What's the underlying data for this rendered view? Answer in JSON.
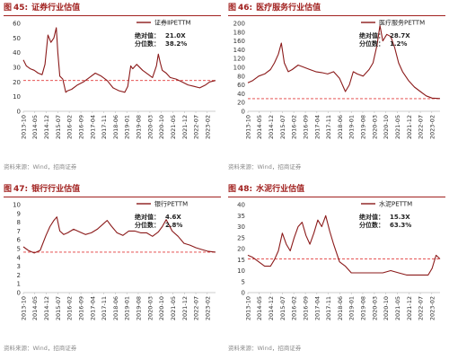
{
  "panels": [
    {
      "figure_label": "图",
      "figure_num": "45:",
      "title": "证券行业估值",
      "source": "资料来源：Wind，招商证券",
      "annotation": {
        "abs_label": "绝对值：",
        "abs_value": "21.0X",
        "pct_label": "分位数：",
        "pct_value": "38.2%"
      }
    },
    {
      "figure_label": "图",
      "figure_num": "46:",
      "title": "医疗服务行业估值",
      "source": "资料来源：Wind，招商证券",
      "annotation": {
        "abs_label": "绝对值：",
        "abs_value": "28.7X",
        "pct_label": "分位数：",
        "pct_value": "1.2%"
      }
    },
    {
      "figure_label": "图",
      "figure_num": "47:",
      "title": "银行行业估值",
      "source": "资料来源：Wind，招商证券",
      "annotation": {
        "abs_label": "绝对值：",
        "abs_value": "4.6X",
        "pct_label": "分位数：",
        "pct_value": "2.8%"
      }
    },
    {
      "figure_label": "图",
      "figure_num": "48:",
      "title": "水泥行业估值",
      "source": "资料来源：Wind，招商证券",
      "annotation": {
        "abs_label": "绝对值：",
        "abs_value": "15.3X",
        "pct_label": "分位数：",
        "pct_value": "63.3%"
      }
    }
  ],
  "colors": {
    "title": "#a1211f",
    "line": "#8b1a1a",
    "reference": "#e23b3b",
    "source": "#8a8a8a",
    "axis": "#bdbdbd"
  },
  "chart_data": [
    {
      "type": "line",
      "legend": "证券ⅡPETTM",
      "legend_position": "top-right",
      "x_ticks": [
        "2013-10",
        "2014-05",
        "2014-12",
        "2015-07",
        "2016-02",
        "2016-09",
        "2017-04",
        "2017-11",
        "2018-06",
        "2019-01",
        "2019-08",
        "2020-03",
        "2020-10",
        "2021-05",
        "2021-12",
        "2022-07",
        "2023-02"
      ],
      "x_tick_pos": [
        2013.75,
        2014.33,
        2014.92,
        2015.5,
        2016.08,
        2016.67,
        2017.25,
        2017.83,
        2018.42,
        2019.0,
        2019.58,
        2020.17,
        2020.75,
        2021.33,
        2021.92,
        2022.5,
        2023.08
      ],
      "xlim": [
        2013.75,
        2023.5
      ],
      "ylim": [
        0,
        60
      ],
      "y_ticks": [
        0,
        10,
        20,
        30,
        40,
        50,
        60
      ],
      "reference": 21.0,
      "series": [
        {
          "x": [
            2013.75,
            2013.9,
            2014.1,
            2014.3,
            2014.5,
            2014.7,
            2014.85,
            2015.0,
            2015.15,
            2015.3,
            2015.42,
            2015.5,
            2015.6,
            2015.75,
            2015.9,
            2016.0,
            2016.2,
            2016.5,
            2016.8,
            2017.1,
            2017.4,
            2017.7,
            2018.0,
            2018.3,
            2018.6,
            2018.9,
            2019.05,
            2019.2,
            2019.3,
            2019.5,
            2019.8,
            2020.1,
            2020.3,
            2020.5,
            2020.6,
            2020.7,
            2020.8,
            2021.0,
            2021.2,
            2021.5,
            2021.8,
            2022.1,
            2022.4,
            2022.7,
            2023.0,
            2023.2,
            2023.5
          ],
          "y": [
            35,
            31,
            29,
            28,
            26,
            25,
            32,
            52,
            47,
            50,
            57,
            40,
            24,
            22,
            13,
            14,
            15,
            18,
            20,
            23,
            26,
            24,
            21,
            16,
            14,
            13,
            17,
            31,
            29,
            32,
            28,
            25,
            23,
            31,
            39,
            33,
            28,
            26,
            23,
            22,
            20,
            18,
            17,
            16,
            18,
            20,
            21
          ]
        }
      ]
    },
    {
      "type": "line",
      "legend": "医疗服务PETTM",
      "legend_position": "top-right",
      "x_ticks": [
        "2013-10",
        "2014-05",
        "2014-12",
        "2015-07",
        "2016-02",
        "2016-09",
        "2017-04",
        "2017-11",
        "2018-06",
        "2019-01",
        "2019-08",
        "2020-03",
        "2020-10",
        "2021-05",
        "2021-12",
        "2022-07",
        "2023-02"
      ],
      "x_tick_pos": [
        2013.75,
        2014.33,
        2014.92,
        2015.5,
        2016.08,
        2016.67,
        2017.25,
        2017.83,
        2018.42,
        2019.0,
        2019.58,
        2020.17,
        2020.75,
        2021.33,
        2021.92,
        2022.5,
        2023.08
      ],
      "xlim": [
        2013.75,
        2023.5
      ],
      "ylim": [
        0,
        200
      ],
      "y_ticks": [
        0,
        20,
        40,
        60,
        80,
        100,
        120,
        140,
        160,
        180,
        200
      ],
      "reference": 28.7,
      "series": [
        {
          "x": [
            2013.75,
            2014.0,
            2014.3,
            2014.6,
            2014.9,
            2015.1,
            2015.3,
            2015.45,
            2015.6,
            2015.8,
            2016.0,
            2016.3,
            2016.6,
            2016.9,
            2017.2,
            2017.5,
            2017.8,
            2018.1,
            2018.4,
            2018.7,
            2018.9,
            2019.1,
            2019.3,
            2019.6,
            2019.9,
            2020.1,
            2020.3,
            2020.45,
            2020.6,
            2020.8,
            2021.0,
            2021.2,
            2021.4,
            2021.6,
            2021.9,
            2022.2,
            2022.5,
            2022.8,
            2023.1,
            2023.5
          ],
          "y": [
            65,
            70,
            80,
            85,
            95,
            110,
            130,
            155,
            110,
            90,
            95,
            105,
            100,
            95,
            90,
            88,
            85,
            90,
            75,
            45,
            60,
            90,
            85,
            80,
            95,
            110,
            150,
            195,
            160,
            175,
            170,
            145,
            110,
            90,
            70,
            55,
            45,
            35,
            30,
            29
          ]
        }
      ]
    },
    {
      "type": "line",
      "legend": "银行PETTM",
      "legend_position": "top-right",
      "x_ticks": [
        "2013-10",
        "2014-05",
        "2014-12",
        "2015-07",
        "2016-02",
        "2016-09",
        "2017-04",
        "2017-11",
        "2018-06",
        "2019-01",
        "2019-08",
        "2020-03",
        "2020-10",
        "2021-05",
        "2021-12",
        "2022-07",
        "2023-02"
      ],
      "x_tick_pos": [
        2013.75,
        2014.33,
        2014.92,
        2015.5,
        2016.08,
        2016.67,
        2017.25,
        2017.83,
        2018.42,
        2019.0,
        2019.58,
        2020.17,
        2020.75,
        2021.33,
        2021.92,
        2022.5,
        2023.08
      ],
      "xlim": [
        2013.75,
        2023.5
      ],
      "ylim": [
        0,
        10
      ],
      "y_ticks": [
        0,
        1,
        2,
        3,
        4,
        5,
        6,
        7,
        8,
        9,
        10
      ],
      "reference": 4.6,
      "series": [
        {
          "x": [
            2013.75,
            2014.0,
            2014.3,
            2014.6,
            2014.9,
            2015.1,
            2015.3,
            2015.45,
            2015.6,
            2015.8,
            2016.0,
            2016.3,
            2016.6,
            2016.9,
            2017.2,
            2017.5,
            2017.8,
            2018.0,
            2018.2,
            2018.5,
            2018.8,
            2019.1,
            2019.4,
            2019.7,
            2020.0,
            2020.3,
            2020.6,
            2020.8,
            2021.0,
            2021.3,
            2021.6,
            2021.9,
            2022.2,
            2022.5,
            2022.8,
            2023.1,
            2023.5
          ],
          "y": [
            5.2,
            4.8,
            4.5,
            4.8,
            6.5,
            7.5,
            8.2,
            8.6,
            7.0,
            6.6,
            6.8,
            7.2,
            6.9,
            6.6,
            6.8,
            7.2,
            7.8,
            8.2,
            7.6,
            6.8,
            6.5,
            7.0,
            7.0,
            6.8,
            6.8,
            6.4,
            6.9,
            7.5,
            8.3,
            7.0,
            6.4,
            5.6,
            5.4,
            5.1,
            4.9,
            4.7,
            4.6
          ]
        }
      ]
    },
    {
      "type": "line",
      "legend": "水泥PETTM",
      "legend_position": "top-right",
      "x_ticks": [
        "2013-10",
        "2014-05",
        "2014-12",
        "2015-07",
        "2016-02",
        "2016-09",
        "2017-04",
        "2017-11",
        "2018-06",
        "2019-01",
        "2019-08",
        "2020-03",
        "2020-10",
        "2021-05",
        "2021-12",
        "2022-07",
        "2023-02"
      ],
      "x_tick_pos": [
        2013.75,
        2014.33,
        2014.92,
        2015.5,
        2016.08,
        2016.67,
        2017.25,
        2017.83,
        2018.42,
        2019.0,
        2019.58,
        2020.17,
        2020.75,
        2021.33,
        2021.92,
        2022.5,
        2023.08
      ],
      "xlim": [
        2013.75,
        2023.5
      ],
      "ylim": [
        0,
        40
      ],
      "y_ticks": [
        0,
        5,
        10,
        15,
        20,
        25,
        30,
        35,
        40
      ],
      "reference": 15.3,
      "series": [
        {
          "x": [
            2013.75,
            2014.0,
            2014.3,
            2014.6,
            2014.9,
            2015.1,
            2015.3,
            2015.5,
            2015.7,
            2015.9,
            2016.1,
            2016.3,
            2016.5,
            2016.7,
            2016.9,
            2017.1,
            2017.3,
            2017.5,
            2017.7,
            2017.9,
            2018.1,
            2018.4,
            2018.7,
            2019.0,
            2019.4,
            2019.8,
            2020.2,
            2020.6,
            2021.0,
            2021.4,
            2021.8,
            2022.2,
            2022.6,
            2022.9,
            2023.1,
            2023.3,
            2023.5
          ],
          "y": [
            17,
            16,
            14,
            12,
            12,
            15,
            19,
            27,
            22,
            19,
            25,
            30,
            32,
            26,
            22,
            27,
            33,
            30,
            35,
            28,
            22,
            14,
            12,
            9,
            9,
            9,
            9,
            9,
            10,
            9,
            8,
            8,
            8,
            8,
            11,
            17,
            15.3
          ]
        }
      ]
    }
  ]
}
